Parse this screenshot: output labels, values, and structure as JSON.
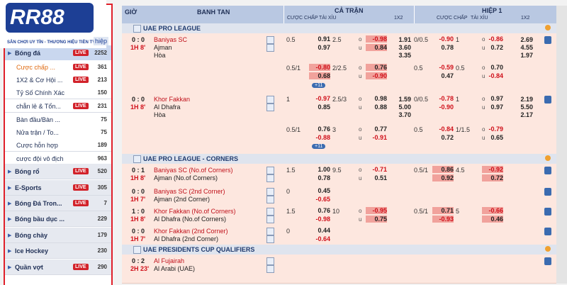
{
  "logo": {
    "brand": "RR88",
    "tagline": "SÂN CHƠI UY TÍN - THƯƠNG HIỆU TIỀN TỶ",
    "tab": "hiệp"
  },
  "live_badge": "LIVE",
  "sidebar": [
    {
      "name": "Bóng đá",
      "live": true,
      "count": "2252",
      "main": true,
      "active": true
    },
    {
      "name": "Cược chấp ...",
      "live": true,
      "count": "361",
      "current": true
    },
    {
      "name": "1X2 & Cơ Hội ...",
      "live": true,
      "count": "213"
    },
    {
      "name": "Tỷ Số Chính Xác",
      "live": false,
      "count": "150"
    },
    {
      "name": "chẵn lẻ & Tổn...",
      "live": true,
      "count": "231"
    },
    {
      "name": "Bàn đầu/Bàn ...",
      "live": false,
      "count": "75"
    },
    {
      "name": "Nửa trận / To...",
      "live": false,
      "count": "75"
    },
    {
      "name": "Cược hỗn hợp",
      "live": false,
      "count": "189"
    },
    {
      "name": "cược đội vô địch",
      "live": false,
      "count": "963"
    },
    {
      "name": "Bóng rổ",
      "live": true,
      "count": "520",
      "main": true
    },
    {
      "name": "E-Sports",
      "live": true,
      "count": "305",
      "main": true
    },
    {
      "name": "Bóng Đá Tron...",
      "live": true,
      "count": "7",
      "main": true
    },
    {
      "name": "Bóng bầu dục ...",
      "live": false,
      "count": "229",
      "main": true
    },
    {
      "name": "Bóng chày",
      "live": false,
      "count": "179",
      "main": true
    },
    {
      "name": "Ice Hockey",
      "live": false,
      "count": "230",
      "main": true
    },
    {
      "name": "Quần vợt",
      "live": true,
      "count": "290",
      "main": true
    }
  ],
  "header": {
    "time": "GIỜ",
    "match": "BANH TAN",
    "full": "CẢ TRẬN",
    "half": "HIỆP 1",
    "hdp": "CƯỢC CHẤP",
    "ou": "TÀI XỈU",
    "x12": "1X2"
  },
  "ou_marks": {
    "over": "o",
    "under": "u"
  },
  "leagues": [
    {
      "name": "UAE PRO LEAGUE",
      "rows": [
        {
          "score": "0 : 0",
          "clock": "1H 8'",
          "teams": [
            "Baniyas SC",
            "Ajman",
            "Hòa"
          ],
          "h": 40,
          "ft_hdp": {
            "line": "0.5",
            "odds": [
              "0.91",
              "0.97"
            ]
          },
          "ft_ou": {
            "line": "2.5",
            "odds": [
              "-0.98",
              "0.84"
            ],
            "highlight": true
          },
          "ft_1x2": [
            "1.91",
            "3.60",
            "3.35"
          ],
          "h1_hdp": {
            "line": "0/0.5",
            "odds": [
              "-0.90",
              "0.78"
            ]
          },
          "h1_ou": {
            "line": "1",
            "odds": [
              "-0.86",
              "0.72"
            ]
          },
          "h1_1x2": [
            "2.69",
            "4.55",
            "1.97"
          ]
        },
        {
          "h": 44,
          "ft_hdp": {
            "line": "0.5/1",
            "odds": [
              "-0.80",
              "0.68"
            ],
            "highlight": true
          },
          "ft_ou": {
            "line": "2/2.5",
            "odds": [
              "0.76",
              "-0.90"
            ],
            "highlight": true
          },
          "h1_hdp": {
            "line": "0.5",
            "odds": [
              "-0.59",
              "0.47"
            ]
          },
          "h1_ou": {
            "line": "0.5",
            "odds": [
              "0.70",
              "-0.84"
            ]
          },
          "more": "+11"
        },
        {
          "score": "0 : 0",
          "clock": "1H 8'",
          "teams": [
            "Khor Fakkan",
            "Al Dhafra",
            "Hòa"
          ],
          "h": 43,
          "ft_hdp": {
            "line": "1",
            "odds": [
              "-0.97",
              "0.85"
            ]
          },
          "ft_ou": {
            "line": "2.5/3",
            "odds": [
              "0.98",
              "0.88"
            ]
          },
          "ft_1x2": [
            "1.59",
            "5.00",
            "3.70"
          ],
          "h1_hdp": {
            "line": "0/0.5",
            "odds": [
              "-0.78",
              "-0.90"
            ]
          },
          "h1_ou": {
            "line": "1",
            "odds": [
              "0.97",
              "0.97"
            ]
          },
          "h1_1x2": [
            "2.19",
            "5.50",
            "2.17"
          ]
        },
        {
          "h": 43,
          "ft_hdp": {
            "line": "0.5/1",
            "odds": [
              "0.76",
              "-0.88"
            ]
          },
          "ft_ou": {
            "line": "3",
            "odds": [
              "0.77",
              "-0.91"
            ]
          },
          "h1_hdp": {
            "line": "0.5",
            "odds": [
              "-0.84",
              "0.72"
            ]
          },
          "h1_ou": {
            "line": "1/1.5",
            "odds": [
              "-0.79",
              "0.65"
            ]
          },
          "more": "+11"
        }
      ]
    },
    {
      "name": "UAE PRO LEAGUE - CORNERS",
      "rows": [
        {
          "score": "0 : 1",
          "clock": "1H 8'",
          "teams": [
            "Baniyas SC (No.of Corners)",
            "Ajman (No.of Corners)"
          ],
          "h": 30,
          "ft_hdp": {
            "line": "1.5",
            "odds": [
              "1.00",
              "0.78"
            ]
          },
          "ft_ou": {
            "line": "9.5",
            "odds": [
              "-0.71",
              "0.51"
            ]
          },
          "h1_hdp": {
            "line": "0.5/1",
            "odds": [
              "0.86",
              "0.92"
            ],
            "highlight": true
          },
          "h1_ou": {
            "line": "4.5",
            "odds": [
              "-0.92",
              "0.72"
            ],
            "highlight": true
          }
        },
        {
          "score": "0 : 0",
          "clock": "1H 7'",
          "teams": [
            "Baniyas SC (2nd Corner)",
            "Ajman (2nd Corner)"
          ],
          "h": 28,
          "ft_hdp": {
            "line": "0",
            "odds": [
              "0.45",
              "-0.65"
            ]
          }
        },
        {
          "score": "1 : 0",
          "clock": "1H 8'",
          "teams": [
            "Khor Fakkan (No.of Corners)",
            "Al Dhafra (No.of Corners)"
          ],
          "h": 28,
          "ft_hdp": {
            "line": "1.5",
            "odds": [
              "0.76",
              "-0.98"
            ]
          },
          "ft_ou": {
            "line": "10",
            "odds": [
              "-0.95",
              "0.75"
            ],
            "highlight": true
          },
          "h1_hdp": {
            "line": "0.5/1",
            "odds": [
              "0.71",
              "-0.93"
            ],
            "highlight": true
          },
          "h1_ou": {
            "line": "5",
            "odds": [
              "-0.66",
              "0.46"
            ],
            "highlight": true
          }
        },
        {
          "score": "0 : 0",
          "clock": "1H 7'",
          "teams": [
            "Khor Fakkan (2nd Corner)",
            "Al Dhafra (2nd Corner)"
          ],
          "h": 28,
          "ft_hdp": {
            "line": "0",
            "odds": [
              "0.44",
              "-0.64"
            ]
          }
        }
      ]
    },
    {
      "name": "UAE PRESIDENTS CUP QUALIFIERS",
      "rows": [
        {
          "score": "0 : 2",
          "clock": "2H 23'",
          "teams": [
            "Al Fujairah",
            "Al Arabi (UAE)"
          ],
          "h": 40
        }
      ]
    }
  ]
}
